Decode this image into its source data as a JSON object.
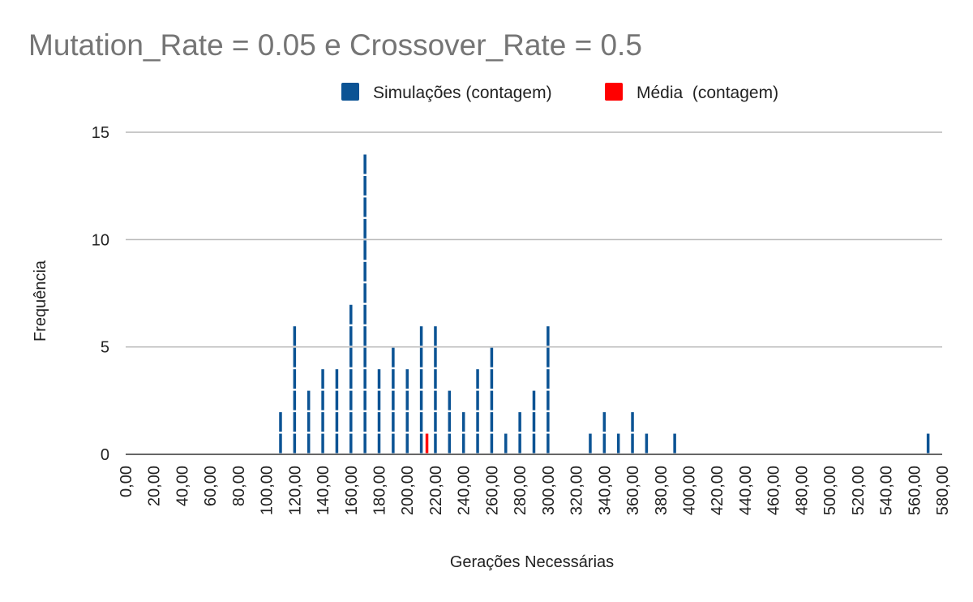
{
  "chart_data": {
    "type": "bar",
    "title": "Mutation_Rate = 0.05 e Crossover_Rate = 0.5",
    "xlabel": "Gerações Necessárias",
    "ylabel": "Frequência",
    "xlim": [
      0,
      580
    ],
    "ylim": [
      0,
      15
    ],
    "yticks": [
      "0",
      "5",
      "10",
      "15"
    ],
    "xticks": [
      "0,00",
      "20,00",
      "40,00",
      "60,00",
      "80,00",
      "100,00",
      "120,00",
      "140,00",
      "160,00",
      "180,00",
      "200,00",
      "220,00",
      "240,00",
      "260,00",
      "280,00",
      "300,00",
      "320,00",
      "340,00",
      "360,00",
      "380,00",
      "400,00",
      "420,00",
      "440,00",
      "460,00",
      "480,00",
      "500,00",
      "520,00",
      "540,00",
      "560,00",
      "580,00"
    ],
    "grid": true,
    "legend_position": "top",
    "series": [
      {
        "name": "Simulações (contagem)",
        "color": "#0b5394",
        "points": [
          {
            "x": 110,
            "y": 2
          },
          {
            "x": 120,
            "y": 6
          },
          {
            "x": 130,
            "y": 3
          },
          {
            "x": 140,
            "y": 4
          },
          {
            "x": 150,
            "y": 4
          },
          {
            "x": 160,
            "y": 7
          },
          {
            "x": 170,
            "y": 14
          },
          {
            "x": 180,
            "y": 4
          },
          {
            "x": 190,
            "y": 5
          },
          {
            "x": 200,
            "y": 4
          },
          {
            "x": 210,
            "y": 6
          },
          {
            "x": 220,
            "y": 6
          },
          {
            "x": 230,
            "y": 3
          },
          {
            "x": 240,
            "y": 2
          },
          {
            "x": 250,
            "y": 4
          },
          {
            "x": 260,
            "y": 5
          },
          {
            "x": 270,
            "y": 1
          },
          {
            "x": 280,
            "y": 2
          },
          {
            "x": 290,
            "y": 3
          },
          {
            "x": 300,
            "y": 6
          },
          {
            "x": 330,
            "y": 1
          },
          {
            "x": 340,
            "y": 2
          },
          {
            "x": 350,
            "y": 1
          },
          {
            "x": 360,
            "y": 2
          },
          {
            "x": 370,
            "y": 1
          },
          {
            "x": 390,
            "y": 1
          },
          {
            "x": 570,
            "y": 1
          }
        ]
      },
      {
        "name": "Média  (contagem)",
        "color": "#ff0000",
        "points": [
          {
            "x": 214,
            "y": 1
          }
        ]
      }
    ]
  }
}
